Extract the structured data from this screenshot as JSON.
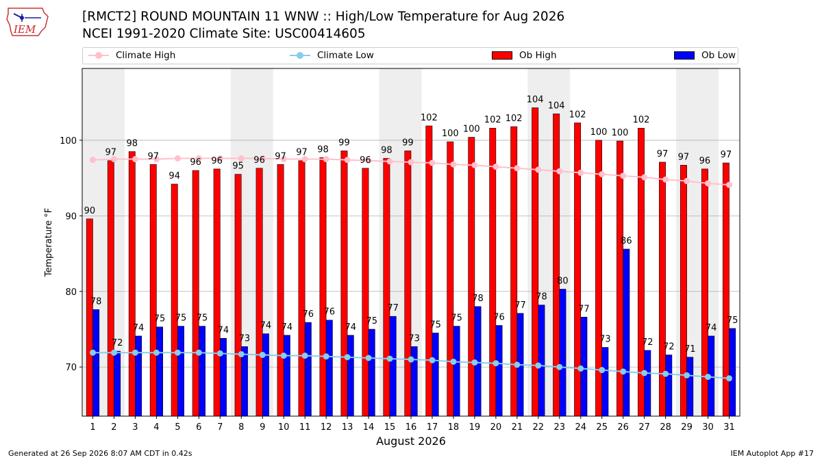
{
  "header": {
    "logo_text": "IEM",
    "title_line1": "[RMCT2] ROUND MOUNTAIN 11 WNW :: High/Low Temperature for Aug 2026",
    "title_line2": "NCEI 1991-2020 Climate Site: USC00414605"
  },
  "footer": {
    "generated": "Generated at 26 Sep 2026 8:07 AM CDT in 0.42s",
    "app": "IEM Autoplot App #17"
  },
  "colors": {
    "ob_high": "#ff0000",
    "ob_low": "#0000ff",
    "climate_high": "#ffc0cb",
    "climate_low": "#87ceeb",
    "weekend_shade": "#eeeeee",
    "grid": "#b0b0b0"
  },
  "chart_data": {
    "type": "bar",
    "xlabel": "August 2026",
    "ylabel": "Temperature °F",
    "xlim": [
      0.5,
      31.5
    ],
    "ylim": [
      63.5,
      109.5
    ],
    "yticks": [
      70,
      80,
      90,
      100
    ],
    "grid": "horizontal",
    "legend_position": "top",
    "categories": [
      1,
      2,
      3,
      4,
      5,
      6,
      7,
      8,
      9,
      10,
      11,
      12,
      13,
      14,
      15,
      16,
      17,
      18,
      19,
      20,
      21,
      22,
      23,
      24,
      25,
      26,
      27,
      28,
      29,
      30,
      31
    ],
    "shaded_days": [
      1,
      2,
      8,
      9,
      15,
      16,
      22,
      23,
      29,
      30
    ],
    "series": [
      {
        "name": "Ob High",
        "kind": "bar",
        "values": [
          89.6,
          97.3,
          98.5,
          96.8,
          94.2,
          96.0,
          96.2,
          95.5,
          96.3,
          96.8,
          97.3,
          97.7,
          98.6,
          96.3,
          97.6,
          98.6,
          101.9,
          99.8,
          100.4,
          101.6,
          101.8,
          104.3,
          103.5,
          102.3,
          100.0,
          99.9,
          101.6,
          97.1,
          96.7,
          96.2,
          97.0
        ],
        "labels": [
          "90",
          "97",
          "98",
          "97",
          "94",
          "96",
          "96",
          "95",
          "96",
          "97",
          "97",
          "98",
          "99",
          "96",
          "98",
          "99",
          "102",
          "100",
          "100",
          "102",
          "102",
          "104",
          "104",
          "102",
          "100",
          "100",
          "102",
          "97",
          "97",
          "96",
          "97"
        ]
      },
      {
        "name": "Ob Low",
        "kind": "bar",
        "values": [
          77.6,
          72.1,
          74.1,
          75.3,
          75.4,
          75.4,
          73.8,
          72.7,
          74.4,
          74.2,
          75.9,
          76.2,
          74.2,
          75.0,
          76.7,
          72.7,
          74.5,
          75.4,
          78.0,
          75.5,
          77.1,
          78.2,
          80.3,
          76.6,
          72.6,
          85.6,
          72.2,
          71.6,
          71.3,
          74.1,
          75.1
        ],
        "labels": [
          "78",
          "72",
          "74",
          "75",
          "75",
          "75",
          "74",
          "73",
          "74",
          "74",
          "76",
          "76",
          "74",
          "75",
          "77",
          "73",
          "75",
          "75",
          "78",
          "76",
          "77",
          "78",
          "80",
          "77",
          "73",
          "86",
          "72",
          "72",
          "71",
          "74",
          "75"
        ]
      },
      {
        "name": "Climate High",
        "kind": "line",
        "values": [
          97.4,
          97.5,
          97.5,
          97.5,
          97.6,
          97.6,
          97.6,
          97.6,
          97.6,
          97.5,
          97.5,
          97.5,
          97.4,
          97.3,
          97.2,
          97.1,
          97.0,
          96.8,
          96.7,
          96.5,
          96.3,
          96.1,
          95.9,
          95.7,
          95.5,
          95.3,
          95.1,
          94.8,
          94.6,
          94.3,
          94.1
        ]
      },
      {
        "name": "Climate Low",
        "kind": "line",
        "values": [
          71.9,
          71.9,
          71.9,
          71.9,
          71.9,
          71.9,
          71.8,
          71.7,
          71.6,
          71.5,
          71.5,
          71.4,
          71.3,
          71.2,
          71.1,
          71.0,
          70.9,
          70.7,
          70.6,
          70.5,
          70.3,
          70.2,
          70.0,
          69.8,
          69.6,
          69.4,
          69.2,
          69.1,
          68.9,
          68.7,
          68.5
        ]
      }
    ]
  }
}
